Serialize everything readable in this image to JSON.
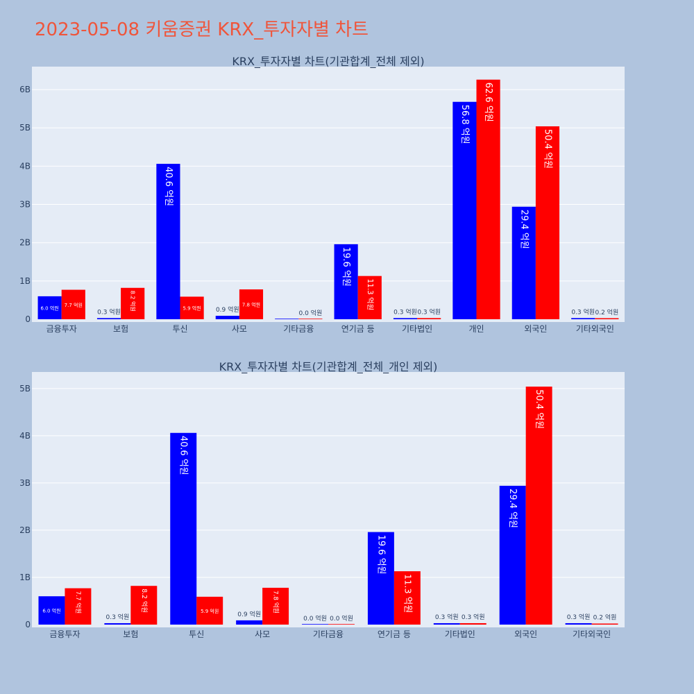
{
  "page_title": "2023-05-08 키움증권 KRX_투자자별 차트",
  "colors": {
    "series1": "#0000ff",
    "series2": "#ff0000",
    "title": "#ef553b",
    "plot_bg": "#e5ecf6",
    "page_bg": "#b0c4de"
  },
  "chart_data": [
    {
      "type": "bar",
      "title": "KRX_투자자별 차트(기관합계_전체 제외)",
      "categories": [
        "금융투자",
        "보험",
        "투신",
        "사모",
        "기타금융",
        "연기금 등",
        "기타법인",
        "개인",
        "외국인",
        "기타외국인"
      ],
      "series": [
        {
          "color": "#0000ff",
          "values": [
            600000000,
            30000000,
            4060000000,
            90000000,
            0,
            1960000000,
            30000000,
            5680000000,
            2940000000,
            30000000
          ],
          "labels": [
            "6.0 억원",
            "0.3 억원",
            "40.6 억원",
            "0.9 억원",
            "",
            "19.6 억원",
            "0.3 억원",
            "56.8 억원",
            "29.4 억원",
            "0.3 억원"
          ]
        },
        {
          "color": "#ff0000",
          "values": [
            770000000,
            820000000,
            590000000,
            780000000,
            0,
            1130000000,
            30000000,
            6260000000,
            5040000000,
            20000000
          ],
          "labels": [
            "7.7 억원",
            "8.2 억원",
            "5.9 억원",
            "7.8 억원",
            "0.0 억원",
            "11.3 억원",
            "0.3 억원",
            "62.6 억원",
            "50.4 억원",
            "0.2 억원"
          ]
        }
      ],
      "yticks": [
        0,
        1000000000,
        2000000000,
        3000000000,
        4000000000,
        5000000000,
        6000000000
      ],
      "ytick_labels": [
        "0",
        "1B",
        "2B",
        "3B",
        "4B",
        "5B",
        "6B"
      ],
      "ylim": [
        0,
        6600000000
      ],
      "grid": true
    },
    {
      "type": "bar",
      "title": "KRX_투자자별 차트(기관합계_전체_개인 제외)",
      "categories": [
        "금융투자",
        "보험",
        "투신",
        "사모",
        "기타금융",
        "연기금 등",
        "기타법인",
        "외국인",
        "기타외국인"
      ],
      "series": [
        {
          "color": "#0000ff",
          "values": [
            600000000,
            30000000,
            4060000000,
            90000000,
            0,
            1960000000,
            30000000,
            2940000000,
            30000000
          ],
          "labels": [
            "6.0 억원",
            "0.3 억원",
            "40.6 억원",
            "0.9 억원",
            "0.0 억원",
            "19.6 억원",
            "0.3 억원",
            "29.4 억원",
            "0.3 억원"
          ]
        },
        {
          "color": "#ff0000",
          "values": [
            770000000,
            820000000,
            590000000,
            780000000,
            0,
            1130000000,
            30000000,
            5040000000,
            20000000
          ],
          "labels": [
            "7.7 억원",
            "8.2 억원",
            "5.9 억원",
            "7.8 억원",
            "0.0 억원",
            "11.3 억원",
            "0.3 억원",
            "50.4 억원",
            "0.2 억원"
          ]
        }
      ],
      "yticks": [
        0,
        1000000000,
        2000000000,
        3000000000,
        4000000000,
        5000000000
      ],
      "ytick_labels": [
        "0",
        "1B",
        "2B",
        "3B",
        "4B",
        "5B"
      ],
      "ylim": [
        0,
        5350000000
      ],
      "grid": true
    }
  ]
}
